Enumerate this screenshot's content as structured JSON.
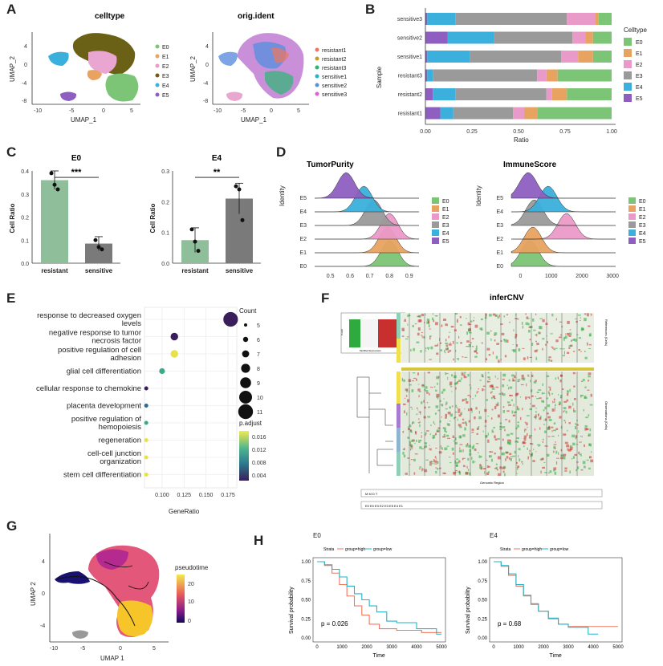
{
  "panel_labels": {
    "A": "A",
    "B": "B",
    "C": "C",
    "D": "D",
    "E": "E",
    "F": "F",
    "G": "G",
    "H": "H"
  },
  "colors": {
    "E0": "#7cc576",
    "E1": "#e8a360",
    "E2": "#ea9ac8",
    "E3": "#9a9a9a",
    "E4": "#3bb0dc",
    "E5": "#8e5fc0",
    "resistant_bar": "#8fbf9a",
    "sensitive_bar": "#7a7a7a",
    "high": "#f0765e",
    "low": "#22b5c8"
  },
  "panelA": {
    "celltype": {
      "title": "celltype",
      "xlabel": "UMAP_1",
      "ylabel": "UMAP_2",
      "xticks": [
        "-10",
        "-5",
        "0",
        "5"
      ],
      "yticks": [
        "4",
        "0",
        "-4",
        "-8"
      ],
      "legend": [
        "E0",
        "E1",
        "E2",
        "E3",
        "E4",
        "E5"
      ]
    },
    "orig": {
      "title": "orig.ident",
      "xlabel": "UMAP_1",
      "ylabel": "UMAP_2",
      "xticks": [
        "-10",
        "-5",
        "0",
        "5"
      ],
      "yticks": [
        "4",
        "0",
        "-4",
        "-8"
      ],
      "legend": [
        "resistant1",
        "resistant2",
        "resistant3",
        "sensitive1",
        "sensitive2",
        "sensitive3"
      ],
      "legend_colors": [
        "#f0765e",
        "#c79a26",
        "#2bb673",
        "#26b5c8",
        "#5d8fde",
        "#e15fd6"
      ]
    }
  },
  "chart_data": [
    {
      "panel": "B",
      "type": "bar",
      "orientation": "horizontal",
      "stacked": true,
      "title": "",
      "xlabel": "Ratio",
      "ylabel": "Sample",
      "xlim": [
        0,
        1
      ],
      "xticks": [
        "0.00",
        "0.25",
        "0.50",
        "0.75",
        "1.00"
      ],
      "legend_title": "Celltype",
      "categories": [
        "sensitive3",
        "sensitive2",
        "sensitive1",
        "resistant3",
        "resistant2",
        "resistant1"
      ],
      "series": [
        {
          "name": "E5",
          "values": [
            0.01,
            0.12,
            0.01,
            0.01,
            0.04,
            0.08
          ]
        },
        {
          "name": "E4",
          "values": [
            0.15,
            0.25,
            0.23,
            0.03,
            0.12,
            0.07
          ]
        },
        {
          "name": "E3",
          "values": [
            0.6,
            0.42,
            0.49,
            0.56,
            0.49,
            0.32
          ]
        },
        {
          "name": "E2",
          "values": [
            0.15,
            0.07,
            0.09,
            0.05,
            0.03,
            0.06
          ]
        },
        {
          "name": "E1",
          "values": [
            0.02,
            0.04,
            0.08,
            0.06,
            0.08,
            0.07
          ]
        },
        {
          "name": "E0",
          "values": [
            0.07,
            0.1,
            0.1,
            0.29,
            0.24,
            0.4
          ]
        }
      ]
    },
    {
      "panel": "C",
      "type": "bar",
      "title": "E0",
      "ylabel": "Cell Ratio",
      "categories": [
        "resistant",
        "sensitive"
      ],
      "values": [
        0.36,
        0.085
      ],
      "errors": [
        0.04,
        0.03
      ],
      "points": [
        [
          0.39,
          0.34,
          0.32
        ],
        [
          0.1,
          0.07,
          0.06
        ]
      ],
      "ylim": [
        0,
        0.4
      ],
      "yticks": [
        "0.0",
        "0.1",
        "0.2",
        "0.3",
        "0.4"
      ],
      "significance": "***"
    },
    {
      "panel": "C",
      "type": "bar",
      "title": "E4",
      "ylabel": "Cell Ratio",
      "categories": [
        "resistant",
        "sensitive"
      ],
      "values": [
        0.075,
        0.21
      ],
      "errors": [
        0.04,
        0.05
      ],
      "points": [
        [
          0.11,
          0.07,
          0.04
        ],
        [
          0.25,
          0.24,
          0.14
        ]
      ],
      "ylim": [
        0,
        0.3
      ],
      "yticks": [
        "0.0",
        "0.1",
        "0.2",
        "0.3"
      ],
      "significance": "**"
    },
    {
      "panel": "D",
      "type": "area",
      "title": "TumorPurity",
      "ylabel": "Identity",
      "xticks": [
        "0.5",
        "0.6",
        "0.7",
        "0.8",
        "0.9"
      ],
      "categories": [
        "E0",
        "E1",
        "E2",
        "E3",
        "E4",
        "E5"
      ],
      "peaks": [
        0.8,
        0.79,
        0.8,
        0.72,
        0.67,
        0.58
      ],
      "legend": [
        "E0",
        "E1",
        "E2",
        "E3",
        "E4",
        "E5"
      ]
    },
    {
      "panel": "D",
      "type": "area",
      "title": "ImmuneScore",
      "ylabel": "Identity",
      "xticks": [
        "0",
        "1000",
        "2000",
        "3000"
      ],
      "categories": [
        "E0",
        "E1",
        "E2",
        "E3",
        "E4",
        "E5"
      ],
      "peaks": [
        300,
        400,
        1500,
        450,
        900,
        250
      ],
      "legend": [
        "E0",
        "E1",
        "E2",
        "E3",
        "E4",
        "E5"
      ]
    },
    {
      "panel": "E",
      "type": "scatter",
      "xlabel": "GeneRatio",
      "xticks": [
        "0.100",
        "0.125",
        "0.150",
        "0.175"
      ],
      "categories": [
        "response to decreased oxygen levels",
        "negative response to tumor necrosis factor",
        "positive regulation of cell adhesion",
        "glial cell differentiation",
        "cellular response to chemokine",
        "placenta development",
        "positive regulation of hemopoiesis",
        "regeneration",
        "cell-cell junction organization",
        "stem cell differentiation"
      ],
      "labels": [
        [
          "response to decreased oxygen",
          "levels"
        ],
        [
          "negative response to tumor",
          "necrosis factor"
        ],
        [
          "positive regulation of cell",
          "adhesion"
        ],
        [
          "glial cell differentiation"
        ],
        [
          "cellular response to chemokine"
        ],
        [
          "placenta development"
        ],
        [
          "positive regulation of",
          "hemopoiesis"
        ],
        [
          "regeneration"
        ],
        [
          "cell-cell junction",
          "organization"
        ],
        [
          "stem cell differentiation"
        ]
      ],
      "gene_ratio": [
        0.178,
        0.114,
        0.114,
        0.1,
        0.082,
        0.082,
        0.082,
        0.082,
        0.082,
        0.082
      ],
      "count": [
        11,
        7,
        7,
        6,
        5,
        5,
        5,
        5,
        5,
        5
      ],
      "p_adjust": [
        0.002,
        0.002,
        0.016,
        0.008,
        0.004,
        0.007,
        0.009,
        0.016,
        0.015,
        0.016
      ],
      "count_legend_title": "Count",
      "count_legend": [
        "5",
        "6",
        "7",
        "8",
        "9",
        "10",
        "11"
      ],
      "padj_legend_title": "p.adjust",
      "padj_legend": [
        "0.016",
        "0.012",
        "0.008",
        "0.004"
      ]
    },
    {
      "panel": "H",
      "type": "line",
      "title": "E0",
      "xlabel": "Time",
      "ylabel": "Survival probability",
      "xticks": [
        "0",
        "1000",
        "2000",
        "3000",
        "4000",
        "5000"
      ],
      "yticks": [
        "0.00",
        "0.25",
        "0.50",
        "0.75",
        "1.00"
      ],
      "strata_label": "Strata",
      "series": [
        {
          "name": "group=high"
        },
        {
          "name": "group=low"
        }
      ],
      "pvalue": "p = 0.026"
    },
    {
      "panel": "H",
      "type": "line",
      "title": "E4",
      "xlabel": "Time",
      "ylabel": "Survival probability",
      "xticks": [
        "0",
        "1000",
        "2000",
        "3000",
        "4000",
        "5000"
      ],
      "yticks": [
        "0.00",
        "0.25",
        "0.50",
        "0.75",
        "1.00"
      ],
      "strata_label": "Strata",
      "series": [
        {
          "name": "group=high"
        },
        {
          "name": "group=low"
        }
      ],
      "pvalue": "p = 0.68"
    }
  ],
  "panelF": {
    "title": "inferCNV",
    "xlabel": "Genomic Region",
    "ref_label": "References (Cells)",
    "obs_label": "Observations (Cells)",
    "key_label": "Count",
    "key_xlabel": "Modified Expression",
    "legend1": "M  M  D  T",
    "legend2": "E0  E0  E3  E2  E3  E5  E4  E1"
  },
  "panelG": {
    "xlabel": "UMAP 1",
    "ylabel": "UMAP 2",
    "xticks": [
      "-10",
      "-5",
      "0",
      "5"
    ],
    "yticks": [
      "4",
      "0",
      "-4"
    ],
    "legend_title": "pseudotime",
    "legend_ticks": [
      "20",
      "10",
      "0"
    ]
  }
}
